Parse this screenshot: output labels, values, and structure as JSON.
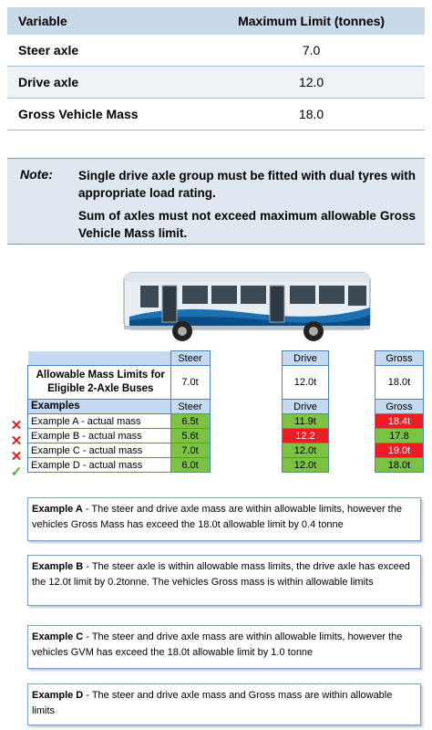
{
  "limits_table": {
    "headers": [
      "Variable",
      "Maximum Limit (tonnes)"
    ],
    "rows": [
      {
        "variable": "Steer axle",
        "limit": "7.0"
      },
      {
        "variable": "Drive axle",
        "limit": "12.0"
      },
      {
        "variable": "Gross Vehicle Mass",
        "limit": "18.0"
      }
    ]
  },
  "note": {
    "label": "Note:",
    "lines": [
      "Single drive axle group must be fitted with dual tyres with appropriate load rating.",
      "Sum of axles must not exceed maximum allowable Gross Vehicle Mass limit."
    ]
  },
  "mass_tables": {
    "allowable_label": "Allowable Mass Limits for Eligible 2-Axle Buses",
    "examples_label": "Examples",
    "columns": {
      "steer": {
        "header": "Steer",
        "limit": "7.0t"
      },
      "drive": {
        "header": "Drive",
        "limit": "12.0t"
      },
      "gross": {
        "header": "Gross",
        "limit": "18.0t"
      }
    },
    "examples": [
      {
        "label": "Example A - actual mass",
        "steer": "6.5t",
        "drive": "11.9t",
        "gross": "18.4t",
        "steer_ok": true,
        "drive_ok": true,
        "gross_ok": false,
        "pass": false
      },
      {
        "label": "Example B - actual mass",
        "steer": "5.6t",
        "drive": "12.2",
        "gross": "17.8",
        "steer_ok": true,
        "drive_ok": false,
        "gross_ok": true,
        "pass": false
      },
      {
        "label": "Example C - actual mass",
        "steer": "7.0t",
        "drive": "12.0t",
        "gross": "19.0t",
        "steer_ok": true,
        "drive_ok": true,
        "gross_ok": false,
        "pass": false
      },
      {
        "label": "Example D - actual mass",
        "steer": "6.0t",
        "drive": "12.0t",
        "gross": "18.0t",
        "steer_ok": true,
        "drive_ok": true,
        "gross_ok": true,
        "pass": true
      }
    ],
    "marks": {
      "fail": "✕",
      "pass": "✓"
    },
    "colors": {
      "ok": "#7dc242",
      "over": "#ef1c24",
      "header": "#c5d9f1"
    }
  },
  "explanations": [
    {
      "title": "Example A",
      "text": " - The steer and drive axle mass are within allowable limits, however the vehicles Gross Mass has exceed the 18.0t allowable limit by 0.4 tonne"
    },
    {
      "title": "Example B",
      "text": " - The steer axle is within allowable mass limits, the drive axle has exceed the 12.0t limit by 0.2tonne. The vehicles Gross mass is within allowable limits"
    },
    {
      "title": "Example C",
      "text": " - The steer and drive axle mass are within allowable limits, however the vehicles GVM has exceed the 18.0t allowable limit by 1.0 tonne"
    },
    {
      "title": "Example D",
      "text": " - The steer and drive axle mass and Gross mass are within allowable limits"
    }
  ]
}
